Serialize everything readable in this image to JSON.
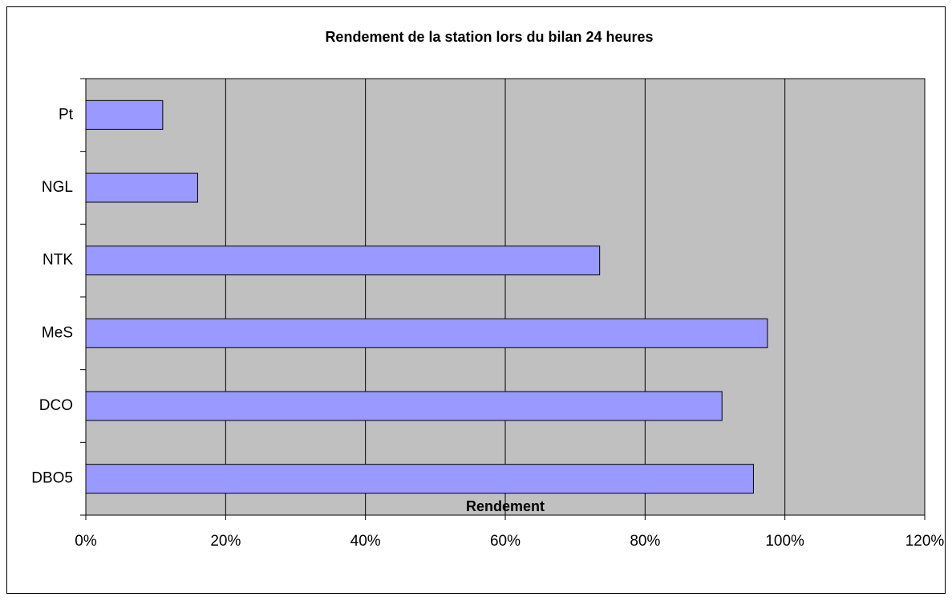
{
  "chart_data": {
    "type": "bar",
    "orientation": "horizontal",
    "title": "Rendement de la station lors du bilan 24 heures",
    "x_label": "Rendement",
    "categories": [
      "DBO5",
      "DCO",
      "MeS",
      "NTK",
      "NGL",
      "Pt"
    ],
    "values": [
      95.5,
      91,
      97.5,
      73.5,
      16,
      11
    ],
    "color": "#9999ff",
    "xlim": [
      0,
      120
    ],
    "xticks": [
      {
        "value": 0,
        "label": "0%"
      },
      {
        "value": 20,
        "label": "20%"
      },
      {
        "value": 40,
        "label": "40%"
      },
      {
        "value": 60,
        "label": "60%"
      },
      {
        "value": 80,
        "label": "80%"
      },
      {
        "value": 100,
        "label": "100%"
      },
      {
        "value": 120,
        "label": "120%"
      }
    ],
    "grid": true
  }
}
